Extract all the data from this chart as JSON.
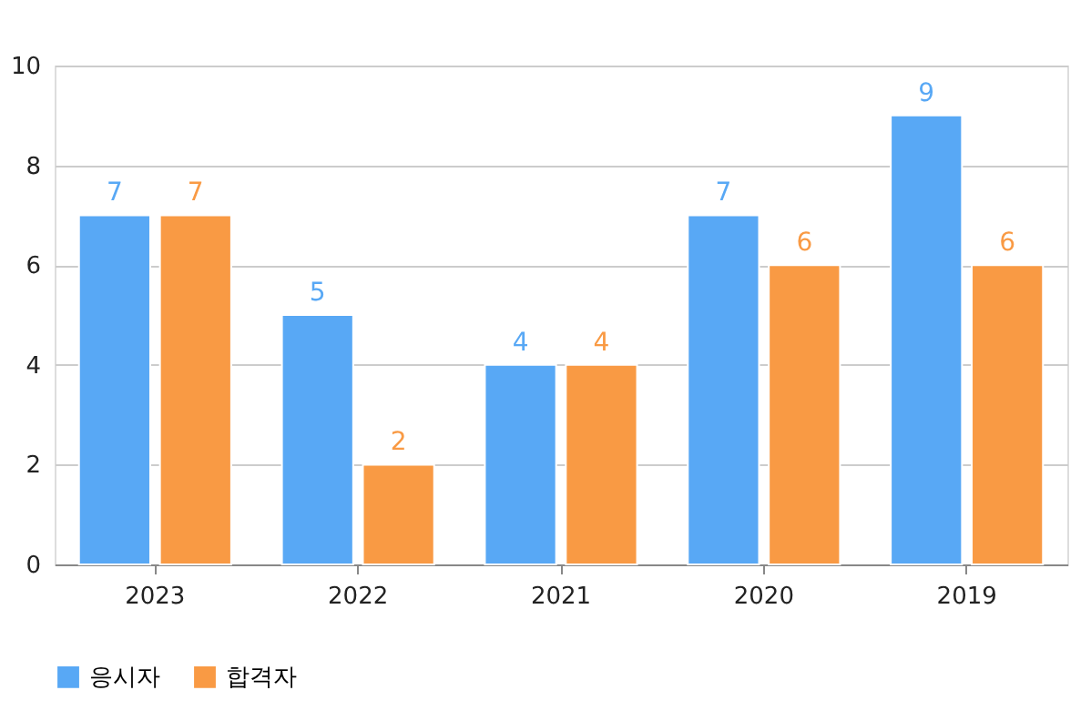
{
  "chart_data": {
    "type": "bar",
    "categories": [
      "2023",
      "2022",
      "2021",
      "2020",
      "2019"
    ],
    "series": [
      {
        "name": "응시자",
        "color": "#58a8f5",
        "values": [
          7,
          5,
          4,
          7,
          9
        ]
      },
      {
        "name": "합격자",
        "color": "#f99a44",
        "values": [
          7,
          2,
          4,
          6,
          6
        ]
      }
    ],
    "ylim": [
      0,
      10
    ],
    "yticks": [
      0,
      2,
      4,
      6,
      8,
      10
    ],
    "grid": "y",
    "legend": "bottom",
    "data_labels": true
  }
}
